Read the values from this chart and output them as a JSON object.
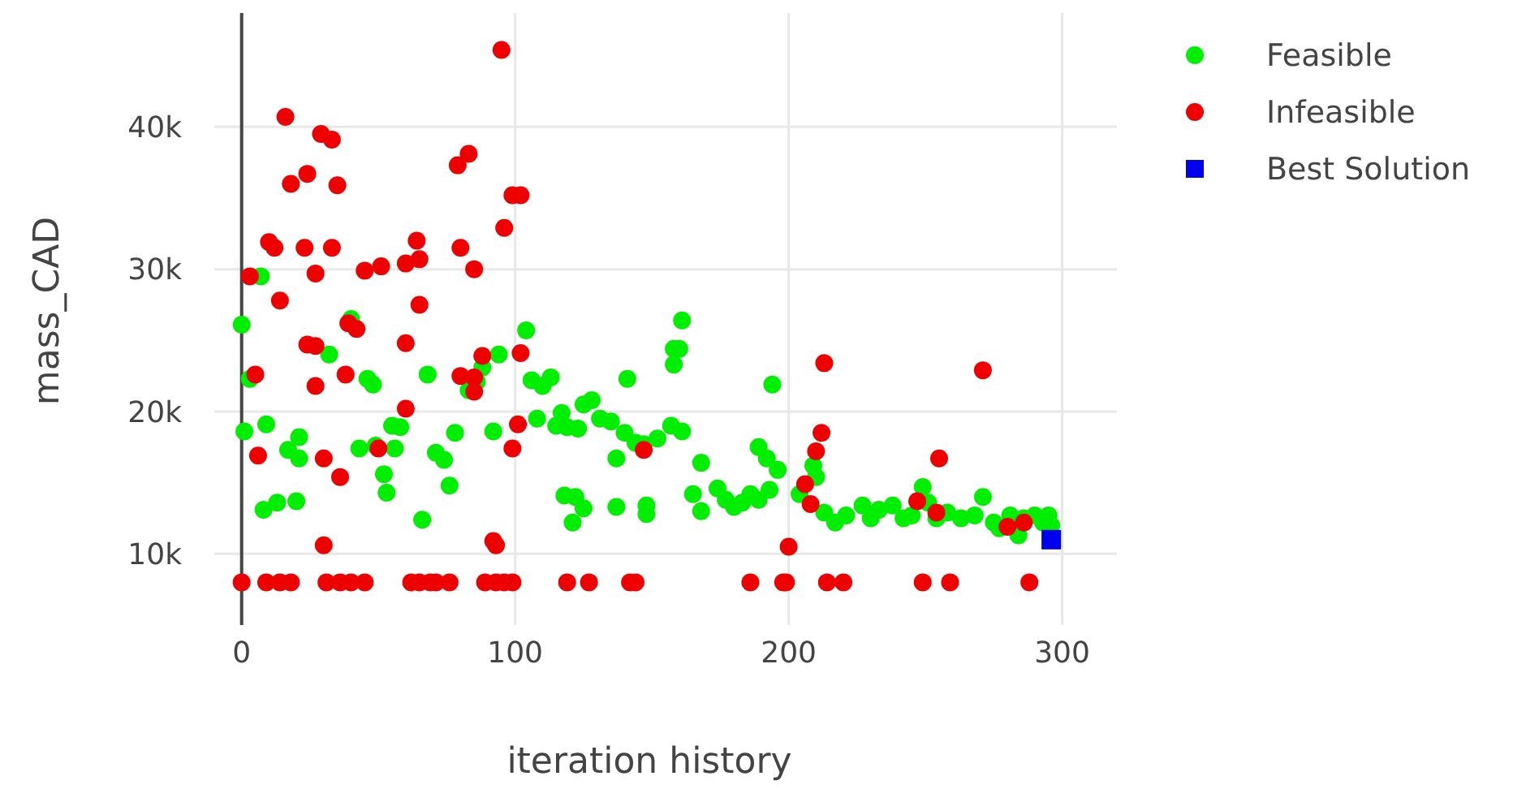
{
  "chart_data": {
    "type": "scatter",
    "xlabel": "iteration history",
    "ylabel": "mass_CAD",
    "xlim": [
      -10,
      320
    ],
    "ylim": [
      5000,
      48000
    ],
    "xticks": [
      0,
      100,
      200,
      300
    ],
    "yticks": [
      {
        "value": 10000,
        "label": "10k"
      },
      {
        "value": 20000,
        "label": "20k"
      },
      {
        "value": 30000,
        "label": "30k"
      },
      {
        "value": 40000,
        "label": "40k"
      }
    ],
    "grid": true,
    "legend": "top right",
    "series": [
      {
        "name": "Feasible",
        "color": "#00ee00",
        "marker": "circle",
        "x": [
          0,
          1,
          7,
          3,
          9,
          8,
          13,
          20,
          21,
          17,
          21,
          32,
          40,
          46,
          48,
          43,
          49,
          55,
          58,
          56,
          52,
          53,
          68,
          66,
          71,
          74,
          76,
          78,
          83,
          86,
          88,
          92,
          104,
          94,
          106,
          110,
          113,
          108,
          115,
          117,
          119,
          123,
          125,
          128,
          131,
          135,
          141,
          140,
          137,
          144,
          147,
          152,
          157,
          161,
          158,
          160,
          161,
          158,
          168,
          118,
          122,
          125,
          121,
          137,
          148,
          148,
          165,
          168,
          174,
          177,
          180,
          183,
          186,
          189,
          193,
          194,
          189,
          192,
          196,
          204,
          210,
          209,
          213,
          217,
          221,
          227,
          230,
          233,
          238,
          242,
          245,
          249,
          251,
          254,
          258,
          263,
          268,
          271,
          275,
          281,
          286,
          290,
          293,
          296,
          295,
          284,
          277
        ],
        "values": [
          26100,
          18600,
          29500,
          22300,
          19100,
          13100,
          13600,
          13700,
          18200,
          17300,
          16700,
          24000,
          26500,
          22300,
          21900,
          17400,
          17600,
          19000,
          18900,
          17400,
          15600,
          14300,
          22600,
          12400,
          17100,
          16600,
          14800,
          18500,
          21500,
          22100,
          23100,
          18600,
          25700,
          24000,
          22200,
          21800,
          22400,
          19500,
          19000,
          19900,
          18900,
          18800,
          20500,
          20800,
          19500,
          19300,
          22300,
          18500,
          16700,
          17800,
          17700,
          18100,
          19000,
          18600,
          24400,
          24400,
          26400,
          23300,
          16400,
          14100,
          14000,
          13200,
          12200,
          13300,
          13400,
          12800,
          14200,
          13000,
          14600,
          13800,
          13300,
          13600,
          14200,
          13800,
          14500,
          21900,
          17500,
          16700,
          15900,
          14200,
          15400,
          16200,
          12900,
          12200,
          12700,
          13400,
          12500,
          13100,
          13400,
          12500,
          12700,
          14700,
          13600,
          12500,
          12900,
          12500,
          12700,
          14000,
          12200,
          12700,
          12500,
          12700,
          12200,
          12000,
          12700,
          11300,
          11800
        ]
      },
      {
        "name": "Infeasible",
        "color": "#ee0000",
        "marker": "circle",
        "x": [
          0,
          9,
          14,
          18,
          31,
          36,
          40,
          45,
          62,
          65,
          69,
          71,
          76,
          89,
          93,
          96,
          99,
          119,
          127,
          142,
          144,
          186,
          198,
          199,
          214,
          220,
          249,
          259,
          288,
          95,
          16,
          29,
          33,
          24,
          18,
          35,
          79,
          83,
          99,
          102,
          96,
          10,
          12,
          23,
          33,
          64,
          65,
          80,
          85,
          45,
          51,
          60,
          3,
          27,
          14,
          65,
          39,
          42,
          24,
          27,
          60,
          88,
          102,
          5,
          80,
          85,
          38,
          27,
          85,
          101,
          99,
          6,
          30,
          36,
          50,
          60,
          92,
          93,
          30,
          147,
          213,
          212,
          210,
          206,
          208,
          200,
          255,
          247,
          254,
          271,
          280,
          286
        ],
        "values": [
          8000,
          8000,
          8000,
          8000,
          8000,
          8000,
          8000,
          8000,
          8000,
          8000,
          8000,
          8000,
          8000,
          8000,
          8000,
          8000,
          8000,
          8000,
          8000,
          8000,
          8000,
          8000,
          8000,
          8000,
          8000,
          8000,
          8000,
          8000,
          8000,
          45400,
          40700,
          39500,
          39100,
          36700,
          36000,
          35900,
          37300,
          38100,
          35200,
          35200,
          32900,
          31900,
          31500,
          31500,
          31500,
          32000,
          30700,
          31500,
          30000,
          29900,
          30200,
          30400,
          29500,
          29700,
          27800,
          27500,
          26200,
          25800,
          24700,
          24600,
          24800,
          23900,
          24100,
          22600,
          22500,
          22400,
          22600,
          21800,
          21400,
          19100,
          17400,
          16900,
          16700,
          15400,
          17400,
          20200,
          10900,
          10600,
          10600,
          17300,
          23400,
          18500,
          17200,
          14900,
          13500,
          10500,
          16700,
          13700,
          12900,
          22900,
          11900,
          12200
        ]
      },
      {
        "name": "Best Solution",
        "color": "#0000ee",
        "marker": "square",
        "x": [
          296
        ],
        "values": [
          11000
        ]
      }
    ]
  }
}
